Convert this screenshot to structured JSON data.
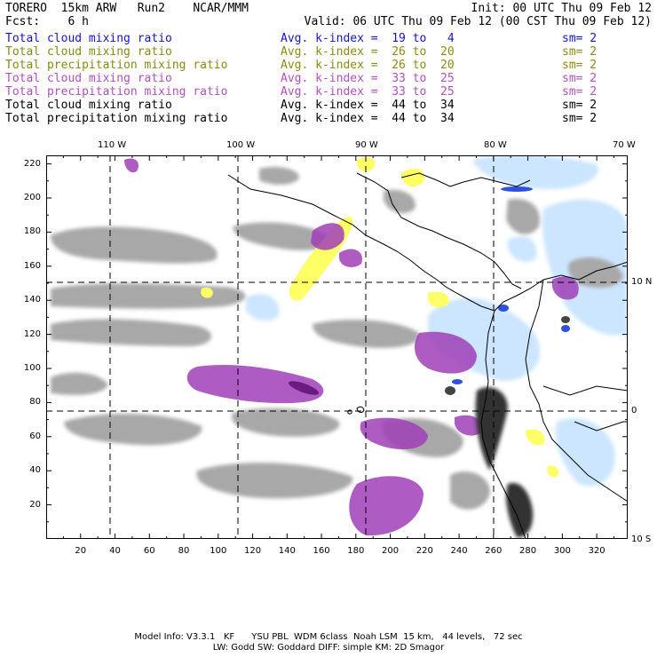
{
  "header": {
    "title_left": "TORERO  15km ARW   Run2    NCAR/MMM",
    "init": "Init: 00 UTC Thu 09 Feb 12",
    "fcst": "Fcst:    6 h",
    "valid": "Valid: 06 UTC Thu 09 Feb 12 (00 CST Thu 09 Feb 12)"
  },
  "legend": [
    {
      "field": "Total cloud mixing ratio",
      "kindex": "Avg. k-index =  19 to   4",
      "sm": "sm= 2",
      "color": "#1515c8"
    },
    {
      "field": "Total cloud mixing ratio",
      "kindex": "Avg. k-index =  26 to  20",
      "sm": "sm= 2",
      "color": "#8a8a10"
    },
    {
      "field": "Total precipitation mixing ratio",
      "kindex": "Avg. k-index =  26 to  20",
      "sm": "sm= 2",
      "color": "#8a8a10"
    },
    {
      "field": "Total cloud mixing ratio",
      "kindex": "Avg. k-index =  33 to  25",
      "sm": "sm= 2",
      "color": "#b050c0"
    },
    {
      "field": "Total precipitation mixing ratio",
      "kindex": "Avg. k-index =  33 to  25",
      "sm": "sm= 2",
      "color": "#b050c0"
    },
    {
      "field": "Total cloud mixing ratio",
      "kindex": "Avg. k-index =  44 to  34",
      "sm": "sm= 2",
      "color": "#000000"
    },
    {
      "field": "Total precipitation mixing ratio",
      "kindex": "Avg. k-index =  44 to  34",
      "sm": "sm= 2",
      "color": "#000000"
    }
  ],
  "lon_labels": [
    "110 W",
    "100 W",
    "90 W",
    "80 W",
    "70 W"
  ],
  "lat_labels": [
    "10 N",
    "0",
    "10 S"
  ],
  "x_ticks": [
    "20",
    "40",
    "60",
    "80",
    "100",
    "120",
    "140",
    "160",
    "180",
    "200",
    "220",
    "240",
    "260",
    "280",
    "300",
    "320"
  ],
  "y_ticks": [
    "220",
    "200",
    "180",
    "160",
    "140",
    "120",
    "100",
    "80",
    "60",
    "40",
    "20"
  ],
  "footer": {
    "line1": "Model Info: V3.3.1   KF      YSU PBL  WDM 6class  Noah LSM  15 km,   44 levels,   72 sec",
    "line2": "LW: Godd SW: Goddard DIFF: simple KM: 2D Smagor"
  },
  "colors": {
    "gray_cloud": "#a8a8a8",
    "purple_precip": "#a040b8",
    "yellow": "#ffff66",
    "light_blue": "#cce6ff",
    "dark_blue": "#3050e0"
  }
}
